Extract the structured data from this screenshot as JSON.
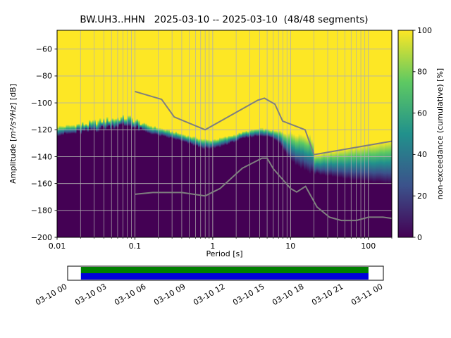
{
  "title": "BW.UH3..HHN   2025-03-10 -- 2025-03-10  (48/48 segments)",
  "chart_data": {
    "type": "heatmap",
    "title": "BW.UH3..HHN   2025-03-10 -- 2025-03-10  (48/48 segments)",
    "xlabel": "Period [s]",
    "ylabel": "Amplitude [m²/s⁴/Hz] [dB]",
    "ylabel_parts": {
      "pre": "Amplitude [",
      "math": "m²/s⁴/Hz",
      "post": "] [dB]"
    },
    "colorbar_label": "non-exceedance (cumulative) [%]",
    "xscale": "log",
    "xlim": [
      0.01,
      200
    ],
    "ylim": [
      -200,
      -46
    ],
    "x_ticks": [
      0.01,
      0.1,
      1,
      10,
      100
    ],
    "x_tick_labels": [
      "0.01",
      "0.1",
      "1",
      "10",
      "100"
    ],
    "y_ticks": [
      -60,
      -80,
      -100,
      -120,
      -140,
      -160,
      -180,
      -200
    ],
    "y_tick_labels": [
      "−60",
      "−80",
      "−100",
      "−120",
      "−140",
      "−160",
      "−180",
      "−200"
    ],
    "colorbar_ticks": [
      0,
      20,
      40,
      60,
      80,
      100
    ],
    "colorbar_tick_labels": [
      "0",
      "20",
      "40",
      "60",
      "80",
      "100"
    ],
    "colormap": "viridis",
    "viridis_stops": [
      "#440154",
      "#3b528b",
      "#21918c",
      "#5ec962",
      "#fde725"
    ],
    "grid_color": "#b0b0b0",
    "distribution": {
      "periods": [
        0.01,
        0.016,
        0.025,
        0.04,
        0.06,
        0.085,
        0.11,
        0.15,
        0.22,
        0.32,
        0.5,
        0.7,
        0.9,
        1.2,
        1.8,
        2.5,
        3.5,
        4.5,
        6.0,
        7.5,
        9.0,
        11.0,
        14.0,
        17.0,
        19.5,
        20.5,
        25.0,
        35.0,
        50.0,
        70.0,
        100.0,
        140.0,
        200.0
      ],
      "p0_db": [
        -124,
        -123,
        -121.5,
        -119,
        -117.5,
        -117,
        -120,
        -122.5,
        -125,
        -127,
        -130.5,
        -133.5,
        -134.5,
        -133,
        -129.5,
        -126.5,
        -125,
        -124.5,
        -126.5,
        -131,
        -138,
        -144.5,
        -148.5,
        -151,
        -152,
        -152.5,
        -153.5,
        -155,
        -156.5,
        -157.5,
        -158.5,
        -159.5,
        -160
      ],
      "p100_db": [
        -117.5,
        -116.5,
        -115,
        -112.5,
        -111,
        -110.5,
        -113.5,
        -116.5,
        -119,
        -121.5,
        -124.5,
        -126.5,
        -127.5,
        -126.5,
        -124,
        -121.5,
        -119.5,
        -119,
        -120.5,
        -121.5,
        -122,
        -122.5,
        -123.5,
        -124.5,
        -126,
        -139,
        -137.5,
        -136.1,
        -134.5,
        -133.1,
        -131.5,
        -130,
        -128.5
      ]
    },
    "noise_models": {
      "color": "#7f7f7f",
      "nhnm": {
        "periods": [
          0.1,
          0.22,
          0.32,
          0.8,
          3.8,
          4.6,
          6.3,
          7.9,
          15.4,
          20.0,
          200.0
        ],
        "db": [
          -91.5,
          -97.4,
          -110.5,
          -120.0,
          -98.0,
          -96.5,
          -101.0,
          -113.5,
          -120.0,
          -138.5,
          -128.5
        ]
      },
      "nlnm": {
        "periods": [
          0.1,
          0.17,
          0.4,
          0.8,
          1.24,
          2.4,
          4.3,
          5.0,
          6.0,
          10.0,
          12.0,
          15.6,
          21.9,
          31.6,
          45.0,
          70.0,
          101.0,
          154.0,
          200.0
        ],
        "db": [
          -168.0,
          -166.7,
          -166.7,
          -169.2,
          -163.7,
          -148.6,
          -141.1,
          -141.1,
          -149.0,
          -163.7,
          -166.3,
          -162.1,
          -177.5,
          -185.0,
          -187.5,
          -187.5,
          -185.0,
          -185.0,
          -185.9
        ]
      }
    },
    "timeline": {
      "labels": [
        "03-10 00",
        "03-10 03",
        "03-10 06",
        "03-10 09",
        "03-10 12",
        "03-10 15",
        "03-10 18",
        "03-10 21",
        "03-11 00"
      ],
      "processed_color": "#008000",
      "data_color": "#0000dd",
      "coverage_start_frac": 0.042,
      "coverage_end_frac": 0.953
    }
  }
}
